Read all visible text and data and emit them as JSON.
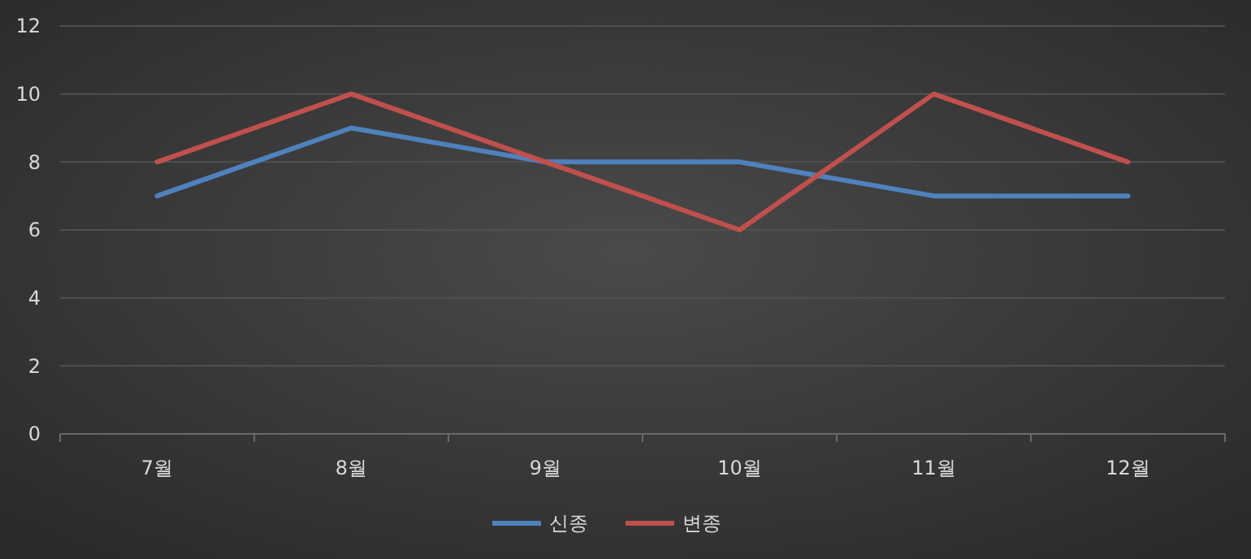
{
  "chart_data": {
    "type": "line",
    "categories": [
      "7월",
      "8월",
      "9월",
      "10월",
      "11월",
      "12월"
    ],
    "series": [
      {
        "name": "신종",
        "color": "#4f81bd",
        "values": [
          7,
          9,
          8,
          8,
          7,
          7
        ]
      },
      {
        "name": "변종",
        "color": "#c0504d",
        "values": [
          8,
          10,
          8,
          6,
          10,
          8
        ]
      }
    ],
    "ylim": [
      0,
      12
    ],
    "yticks": [
      0,
      2,
      4,
      6,
      8,
      10,
      12
    ],
    "grid": "y",
    "legend": "bottom",
    "line_style": "solid",
    "marker": "none"
  }
}
